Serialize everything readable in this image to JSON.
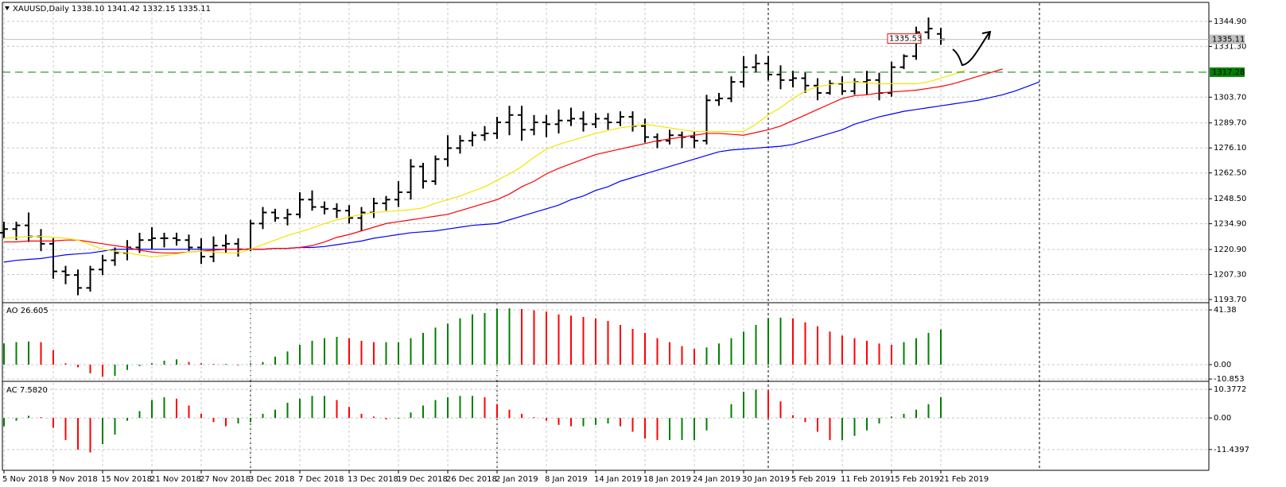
{
  "chart_data": [
    {
      "type": "ohlc",
      "title": "XAUUSD,Daily  1338.10 1341.42 1332.15 1335.11",
      "categories": [
        "5 Nov 2018",
        null,
        null,
        null,
        "9 Nov 2018",
        null,
        null,
        null,
        "15 Nov 2018",
        null,
        null,
        null,
        "21 Nov 2018",
        null,
        null,
        null,
        "27 Nov 2018",
        null,
        null,
        null,
        "3 Dec 2018",
        null,
        null,
        null,
        "7 Dec 2018",
        null,
        null,
        null,
        "13 Dec 2018",
        null,
        null,
        null,
        "19 Dec 2018",
        null,
        null,
        null,
        "26 Dec 2018",
        null,
        null,
        null,
        "2 Jan 2019",
        null,
        null,
        null,
        "8 Jan 2019",
        null,
        null,
        null,
        "14 Jan 2019",
        null,
        null,
        null,
        "18 Jan 2019",
        null,
        null,
        null,
        "24 Jan 2019",
        null,
        null,
        null,
        "30 Jan 2019",
        null,
        null,
        null,
        "5 Feb 2019",
        null,
        null,
        null,
        "11 Feb 2019",
        null,
        null,
        null,
        "15 Feb 2019",
        null,
        null,
        null,
        "21 Feb 2019",
        null,
        null,
        null,
        null,
        null,
        null,
        null,
        null
      ],
      "open": [
        1230,
        1232,
        1234,
        1228,
        1224,
        1209,
        1207,
        1200,
        1210,
        1215,
        1219,
        1222,
        1226,
        1227,
        1227,
        1226,
        1222,
        1217,
        1223,
        1224,
        1221,
        1235,
        1241,
        1238,
        1240,
        1248,
        1244,
        1243,
        1242,
        1238,
        1241,
        1246,
        1248,
        1252,
        1266,
        1258,
        1270,
        1276,
        1280,
        1283,
        1284,
        1290,
        1294,
        1286,
        1290,
        1289,
        1291,
        1292,
        1289,
        1292,
        1290,
        1293,
        1288,
        1282,
        1280,
        1283,
        1282,
        1280,
        1302,
        1303,
        1312,
        1320,
        1322,
        1316,
        1313,
        1314,
        1310,
        1306,
        1311,
        1307,
        1312,
        1313,
        1306,
        1320,
        1326,
        1339,
        1338.1,
        null,
        null,
        null,
        null,
        null,
        null,
        null,
        null
      ],
      "high": [
        1236,
        1236,
        1241,
        1232,
        1227,
        1212,
        1210,
        1212,
        1218,
        1222,
        1226,
        1230,
        1233,
        1230,
        1230,
        1229,
        1227,
        1228,
        1229,
        1227,
        1237,
        1244,
        1243,
        1243,
        1252,
        1253,
        1247,
        1246,
        1245,
        1244,
        1249,
        1250,
        1258,
        1270,
        1268,
        1272,
        1283,
        1283,
        1285,
        1288,
        1293,
        1299,
        1299,
        1294,
        1294,
        1297,
        1298,
        1296,
        1295,
        1295,
        1296,
        1296,
        1292,
        1284,
        1286,
        1285,
        1285,
        1305,
        1306,
        1315,
        1326,
        1327,
        1326,
        1321,
        1318,
        1317,
        1314,
        1313,
        1315,
        1314,
        1318,
        1317,
        1323,
        1327,
        1342,
        1347,
        1341.42,
        null,
        null,
        null,
        null,
        null,
        null,
        null,
        null
      ],
      "low": [
        1227,
        1226,
        1225,
        1220,
        1205,
        1202,
        1196,
        1198,
        1207,
        1212,
        1215,
        1219,
        1221,
        1222,
        1223,
        1220,
        1213,
        1214,
        1219,
        1217,
        1220,
        1232,
        1236,
        1234,
        1238,
        1242,
        1240,
        1238,
        1235,
        1231,
        1238,
        1242,
        1244,
        1248,
        1254,
        1256,
        1266,
        1273,
        1277,
        1280,
        1281,
        1283,
        1280,
        1283,
        1282,
        1284,
        1288,
        1285,
        1287,
        1286,
        1288,
        1285,
        1279,
        1276,
        1278,
        1276,
        1276,
        1278,
        1299,
        1301,
        1309,
        1317,
        1313,
        1308,
        1309,
        1306,
        1302,
        1305,
        1305,
        1305,
        1305,
        1302,
        1304,
        1319,
        1324,
        1335,
        1332.15,
        null,
        null,
        null,
        null,
        null,
        null,
        null,
        null
      ],
      "close": [
        1232,
        1234,
        1228,
        1224,
        1209,
        1207,
        1200,
        1210,
        1215,
        1219,
        1222,
        1226,
        1227,
        1227,
        1226,
        1222,
        1217,
        1223,
        1224,
        1221,
        1235,
        1241,
        1238,
        1240,
        1248,
        1244,
        1243,
        1242,
        1238,
        1241,
        1246,
        1248,
        1252,
        1266,
        1258,
        1270,
        1276,
        1280,
        1283,
        1284,
        1290,
        1294,
        1286,
        1290,
        1289,
        1291,
        1292,
        1289,
        1292,
        1290,
        1293,
        1288,
        1282,
        1280,
        1283,
        1282,
        1280,
        1302,
        1303,
        1312,
        1320,
        1322,
        1316,
        1313,
        1314,
        1310,
        1306,
        1311,
        1307,
        1312,
        1313,
        1306,
        1320,
        1326,
        1339,
        1341,
        1335.11,
        null,
        null,
        null,
        null,
        null,
        null,
        null,
        null
      ],
      "bar_color": "#000000",
      "lines": [
        {
          "color": "#0000ff",
          "values": [
            1214,
            1215,
            1215.5,
            1216,
            1217,
            1218,
            1218.5,
            1219,
            1220,
            1221,
            1221,
            1221,
            1221,
            1221,
            1221,
            1221,
            1221,
            1221,
            1221,
            1221,
            1221,
            1221,
            1221.5,
            1221.5,
            1222,
            1222,
            1222.5,
            1223.5,
            1224.5,
            1225.5,
            1227,
            1228,
            1229,
            1230,
            1230.5,
            1231,
            1232,
            1233,
            1234,
            1234.5,
            1235,
            1237,
            1239,
            1241,
            1243,
            1245,
            1248,
            1250,
            1253,
            1255,
            1258,
            1260,
            1262,
            1264,
            1266,
            1268,
            1270,
            1272,
            1274,
            1275,
            1275.5,
            1276,
            1276.5,
            1277,
            1278,
            1280,
            1282,
            1284,
            1286,
            1289,
            1291,
            1293,
            1294.5,
            1296,
            1297,
            1298,
            1299,
            1300,
            1301,
            1302,
            1303.5,
            1305,
            1307,
            1309.5,
            1312
          ]
        },
        {
          "color": "#ff0000",
          "values": [
            1225,
            1225,
            1225.5,
            1225.5,
            1225.5,
            1226,
            1226,
            1225,
            1224,
            1223,
            1222,
            1220.5,
            1219.5,
            1219,
            1219,
            1219.5,
            1220,
            1220.5,
            1221,
            1221,
            1221,
            1221,
            1221.5,
            1221.5,
            1222,
            1223,
            1225,
            1227.5,
            1229,
            1231,
            1233,
            1235,
            1236,
            1237,
            1238,
            1239,
            1240,
            1242,
            1244,
            1246,
            1248,
            1251,
            1255,
            1258,
            1262,
            1265,
            1267.5,
            1270,
            1272.5,
            1274,
            1275.5,
            1277,
            1278.5,
            1280,
            1281,
            1282,
            1283,
            1284,
            1284,
            1283.5,
            1283,
            1284.5,
            1286,
            1288,
            1291,
            1294,
            1297,
            1300,
            1303,
            1304.5,
            1305,
            1306,
            1306.5,
            1307,
            1307.5,
            1308.5,
            1309.5,
            1311,
            1313,
            1315,
            1317,
            1319,
            null,
            null,
            null
          ]
        },
        {
          "color": "#f2e600",
          "values": [
            1227,
            1227.5,
            1228,
            1228,
            1227.5,
            1227,
            1226,
            1223.5,
            1221,
            1220,
            1219,
            1218,
            1217,
            1217.5,
            1218.5,
            1219.5,
            1220,
            1219.5,
            1219,
            1219,
            1221,
            1223.5,
            1226,
            1228.5,
            1230.5,
            1232.5,
            1235,
            1237,
            1238.5,
            1240,
            1241,
            1241.5,
            1242,
            1242.5,
            1243.5,
            1246,
            1248,
            1250,
            1252.5,
            1255,
            1258.5,
            1262,
            1266,
            1271,
            1275.5,
            1278,
            1280,
            1282,
            1284,
            1285.5,
            1287,
            1288,
            1289,
            1288,
            1287,
            1286,
            1285,
            1285,
            1285,
            1285,
            1285,
            1289,
            1294,
            1298,
            1303,
            1307,
            1309.5,
            1310.5,
            1311.5,
            1312,
            1311.5,
            1311,
            1311,
            1311,
            1311,
            1312,
            1314,
            1316,
            1318.5,
            null,
            null,
            null,
            null,
            null,
            null
          ]
        }
      ],
      "levels": [
        {
          "value": 1335.11,
          "label": "1335.11",
          "color": "#c0c0c0",
          "dashed": false
        },
        {
          "value": 1317.28,
          "label": "1317.28",
          "color": "#008000",
          "dashed": true
        }
      ],
      "annotations": [
        {
          "value": 1335.53,
          "label": "1335.53",
          "color": "#ff0000"
        }
      ],
      "ylim": [
        1192.4,
        1354.8
      ],
      "yticks": [
        {
          "value": 1344.9,
          "label": "1344.90"
        },
        {
          "value": 1331.3,
          "label": "1331.30"
        },
        {
          "value": 1303.7,
          "label": "1303.70"
        },
        {
          "value": 1289.7,
          "label": "1289.70"
        },
        {
          "value": 1276.1,
          "label": "1276.10"
        },
        {
          "value": 1262.5,
          "label": "1262.50"
        },
        {
          "value": 1248.5,
          "label": "1248.50"
        },
        {
          "value": 1234.9,
          "label": "1234.90"
        },
        {
          "value": 1220.9,
          "label": "1220.90"
        },
        {
          "value": 1207.3,
          "label": "1207.30"
        },
        {
          "value": 1193.7,
          "label": "1193.70"
        }
      ],
      "grid": true
    },
    {
      "type": "bar",
      "title": "AO 26.605",
      "values": [
        16,
        17,
        17.5,
        17,
        11,
        1,
        -2,
        -6.5,
        -9,
        -8.5,
        -4,
        -1,
        1,
        3,
        4,
        2,
        1,
        0.5,
        0.5,
        -0.5,
        1,
        2,
        6,
        10,
        15,
        18,
        20,
        21,
        20,
        18,
        17,
        17,
        17,
        20,
        24,
        28,
        31,
        35,
        38,
        39,
        42,
        42.5,
        42,
        41,
        40,
        38,
        37,
        36,
        35,
        33,
        30,
        27,
        24,
        20,
        17,
        14,
        12,
        13,
        16,
        20,
        25,
        30,
        35,
        35.5,
        35,
        32,
        29,
        25,
        22,
        20,
        18,
        16,
        15,
        17,
        20,
        24,
        26.605,
        null,
        null,
        null,
        null,
        null,
        null,
        null,
        null
      ],
      "up_color": "#008000",
      "down_color": "#ff0000",
      "ylim": [
        -11.4,
        45.6
      ],
      "yticks": [
        41.38,
        {
          "value": 0,
          "label": "0.00"
        },
        -10.853
      ],
      "grid": true
    },
    {
      "type": "bar",
      "title": "AC 7.5820",
      "values": [
        -3,
        -1,
        0.8,
        0.3,
        -3.5,
        -8,
        -11.5,
        -12.5,
        -9.5,
        -6,
        -1,
        2.5,
        6.5,
        7.5,
        7,
        4.5,
        1.5,
        -1.5,
        -3,
        -2,
        -1.5,
        1.5,
        3,
        5.5,
        7,
        8,
        8,
        6.5,
        4,
        1.5,
        0.5,
        -0.5,
        -0.3,
        2,
        4.5,
        6.5,
        7.5,
        8,
        8,
        7.5,
        5,
        3,
        1.5,
        0.3,
        -1,
        -2.5,
        -3,
        -3,
        -2.5,
        -2,
        -3,
        -5,
        -7.5,
        -8,
        -8,
        -8,
        -8,
        -4.5,
        0,
        5,
        9.5,
        10.3,
        10,
        6,
        1,
        -1.5,
        -5,
        -8,
        -8,
        -6.5,
        -4.5,
        -2,
        0.5,
        1.5,
        3,
        5,
        7.582,
        null,
        null,
        null,
        null,
        null,
        null,
        null,
        null
      ],
      "up_color": "#008000",
      "down_color": "#ff0000",
      "ylim": [
        -18.4,
        12.7
      ],
      "yticks": [
        10.3772,
        {
          "value": 0,
          "label": "0.00"
        },
        -11.4397
      ],
      "grid": true
    }
  ]
}
